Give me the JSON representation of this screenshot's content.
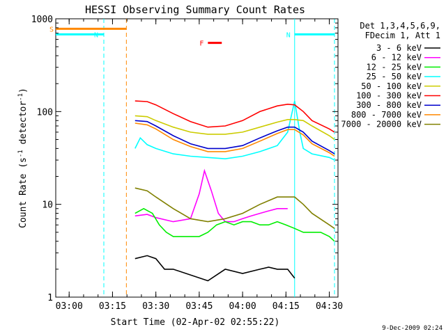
{
  "chart_data": {
    "type": "line",
    "title": "HESSI Observing Summary Count Rates",
    "xlabel": "Start Time (02-Apr-02 02:55:22)",
    "ylabel_main": "Count Rate (s",
    "ylabel_sup1": "-1",
    "ylabel_mid": " detector",
    "ylabel_sup2": "-1",
    "ylabel_end": ")",
    "y_scale": "log",
    "ylim": [
      1,
      1000
    ],
    "xlim": [
      "02:55:22",
      "04:33:00"
    ],
    "x_tick_labels": [
      "03:00",
      "03:15",
      "03:30",
      "03:45",
      "04:00",
      "04:15",
      "04:30"
    ],
    "x_tick_values": [
      3.0,
      3.25,
      3.5,
      3.75,
      4.0,
      4.25,
      4.5
    ],
    "y_tick_labels": [
      "1",
      "10",
      "100",
      "1000"
    ],
    "y_tick_values": [
      1,
      10,
      100,
      1000
    ],
    "legend_header": [
      "Det 1,3,4,5,6,9,",
      "FDecim 1, Att 1"
    ],
    "legend_position": "right",
    "timestamp": "9-Dec-2009 02:24",
    "series": [
      {
        "name": "3 - 6 keV",
        "color": "#000000",
        "x": [
          3.38,
          3.45,
          3.5,
          3.55,
          3.6,
          3.8,
          3.9,
          4.0,
          4.1,
          4.15,
          4.2,
          4.26,
          4.3
        ],
        "y": [
          2.6,
          2.8,
          2.6,
          2.0,
          2.0,
          1.5,
          2.0,
          1.8,
          2.0,
          2.1,
          2.0,
          2.0,
          1.6
        ]
      },
      {
        "name": "6 - 12 keV",
        "color": "#ff00ff",
        "x": [
          3.38,
          3.45,
          3.5,
          3.6,
          3.7,
          3.75,
          3.78,
          3.82,
          3.86,
          3.9,
          3.95,
          4.0,
          4.05,
          4.1,
          4.15,
          4.2,
          4.26
        ],
        "y": [
          7.5,
          7.8,
          7.2,
          6.5,
          7.0,
          13,
          23,
          14,
          8,
          6.5,
          6.5,
          7,
          7.5,
          8,
          8.5,
          9,
          9
        ]
      },
      {
        "name": "12 - 25 keV",
        "color": "#00ee00",
        "x": [
          3.38,
          3.43,
          3.48,
          3.52,
          3.56,
          3.6,
          3.65,
          3.7,
          3.75,
          3.8,
          3.85,
          3.9,
          3.95,
          4.0,
          4.05,
          4.1,
          4.15,
          4.2,
          4.25,
          4.3,
          4.35,
          4.4,
          4.45,
          4.5,
          4.53
        ],
        "y": [
          8,
          9,
          8,
          6,
          5,
          4.5,
          4.5,
          4.5,
          4.5,
          5,
          6,
          6.5,
          6,
          6.5,
          6.5,
          6,
          6,
          6.5,
          6,
          5.5,
          5,
          5,
          5,
          4.5,
          4
        ]
      },
      {
        "name": "25 - 50 keV",
        "color": "#00ffff",
        "x": [
          3.38,
          3.41,
          3.45,
          3.5,
          3.6,
          3.7,
          3.8,
          3.9,
          4.0,
          4.1,
          4.2,
          4.26,
          4.3,
          4.33,
          4.35,
          4.4,
          4.5,
          4.53
        ],
        "y": [
          40,
          52,
          44,
          40,
          35,
          33,
          32,
          31,
          33,
          37,
          43,
          60,
          130,
          60,
          40,
          35,
          32,
          30
        ]
      },
      {
        "name": "50 - 100 keV",
        "color": "#cccc00",
        "x": [
          3.38,
          3.45,
          3.5,
          3.6,
          3.7,
          3.8,
          3.9,
          4.0,
          4.1,
          4.2,
          4.26,
          4.3,
          4.35,
          4.4,
          4.5,
          4.53
        ],
        "y": [
          90,
          88,
          80,
          68,
          60,
          57,
          57,
          60,
          68,
          77,
          82,
          82,
          80,
          70,
          55,
          50
        ]
      },
      {
        "name": "100 - 300 keV",
        "color": "#ff0000",
        "x": [
          3.38,
          3.45,
          3.5,
          3.6,
          3.7,
          3.8,
          3.9,
          4.0,
          4.1,
          4.2,
          4.26,
          4.3,
          4.35,
          4.4,
          4.5,
          4.53
        ],
        "y": [
          130,
          128,
          118,
          95,
          78,
          68,
          70,
          80,
          100,
          115,
          120,
          118,
          100,
          80,
          65,
          60
        ]
      },
      {
        "name": "300 - 800 keV",
        "color": "#0000cc",
        "x": [
          3.38,
          3.45,
          3.5,
          3.6,
          3.7,
          3.8,
          3.9,
          4.0,
          4.1,
          4.2,
          4.26,
          4.3,
          4.35,
          4.4,
          4.5,
          4.53
        ],
        "y": [
          80,
          78,
          70,
          55,
          45,
          40,
          40,
          43,
          52,
          62,
          68,
          68,
          60,
          48,
          38,
          35
        ]
      },
      {
        "name": "800 - 7000 keV",
        "color": "#ff8800",
        "x": [
          3.38,
          3.45,
          3.5,
          3.6,
          3.7,
          3.8,
          3.9,
          4.0,
          4.1,
          4.2,
          4.26,
          4.3,
          4.35,
          4.4,
          4.5,
          4.53
        ],
        "y": [
          75,
          72,
          65,
          50,
          42,
          37,
          37,
          40,
          48,
          58,
          64,
          64,
          56,
          45,
          36,
          33
        ]
      },
      {
        "name": "7000 - 20000 keV",
        "color": "#808000",
        "x": [
          3.38,
          3.45,
          3.5,
          3.6,
          3.7,
          3.8,
          3.9,
          4.0,
          4.1,
          4.2,
          4.26,
          4.3,
          4.35,
          4.4,
          4.5,
          4.53
        ],
        "y": [
          15,
          14,
          12,
          9,
          7,
          6.5,
          7,
          8,
          10,
          12,
          12,
          12,
          10,
          8,
          6,
          5.5
        ]
      }
    ],
    "flags": [
      {
        "label": "S",
        "color": "#ff8800",
        "x0": 2.9228,
        "x1": 3.33,
        "level": 780
      },
      {
        "label": "N",
        "color": "#00ffff",
        "x0": 2.9228,
        "x1": 3.2,
        "level": 680
      },
      {
        "label": "N",
        "color": "#00ffff",
        "x0": 4.3,
        "x1": 4.53,
        "level": 680
      },
      {
        "label": "F",
        "color": "#ff0000",
        "x0": 3.8,
        "x1": 3.88,
        "level": 550
      }
    ],
    "vlines": [
      {
        "x": 3.2,
        "color": "#00ffff",
        "style": "dashed"
      },
      {
        "x": 3.33,
        "color": "#ff8800",
        "style": "dashed"
      },
      {
        "x": 4.3,
        "color": "#00ffff",
        "style": "solid"
      },
      {
        "x": 4.53,
        "color": "#00ffff",
        "style": "dashed"
      }
    ],
    "grid": false
  }
}
